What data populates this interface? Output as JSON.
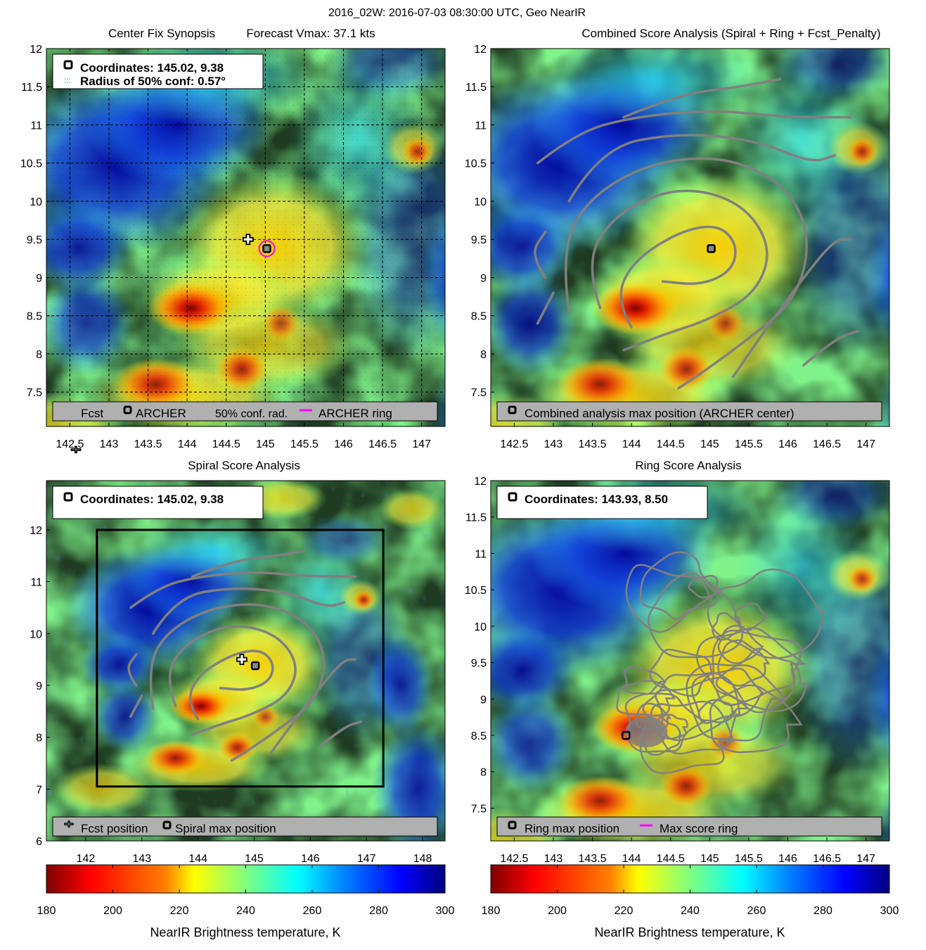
{
  "figure": {
    "suptitle": "2016_02W: 2016-07-03 08:30:00 UTC, Geo NearIR"
  },
  "colors": {
    "jet_stops": [
      "#7f0000",
      "#ff0000",
      "#ff8000",
      "#ffff00",
      "#80ff80",
      "#00ffff",
      "#0080ff",
      "#0000ff",
      "#00007f"
    ],
    "contour": "#808080",
    "archer_ring": "#ff00ff",
    "grid": "#000000",
    "legend_bg": "#b0b0b0"
  },
  "panels": {
    "tl": {
      "title_left": "Center Fix Synopsis",
      "title_right": "Forecast Vmax: 37.1 kts",
      "info_line1": "Coordinates: 145.02, 9.38",
      "info_line2": "Radius of 50% conf: 0.57°",
      "legend": {
        "fcst": "Fcst",
        "archer": "ARCHER",
        "conf": "50% conf. rad.",
        "ring": "ARCHER ring"
      }
    },
    "tr": {
      "title": "Combined Score Analysis (Spiral + Ring + Fcst_Penalty)",
      "legend": "Combined analysis max position (ARCHER center)"
    },
    "bl": {
      "title": "Spiral Score Analysis",
      "info_line1": "Coordinates: 145.02, 9.38",
      "legend": {
        "fcst": "Fcst position",
        "spiral": "Spiral max position"
      }
    },
    "br": {
      "title": "Ring Score Analysis",
      "info_line1": "Coordinates: 143.93, 8.50",
      "legend": {
        "ring_max": "Ring max position",
        "score_ring": "Max score ring"
      }
    }
  },
  "colorbars": {
    "label": "NearIR Brightness temperature, K",
    "ticks": [
      "180",
      "200",
      "220",
      "240",
      "260",
      "280",
      "300"
    ]
  },
  "chart_data": [
    {
      "id": "tl",
      "type": "heatmap",
      "xlim": [
        142.2,
        147.3
      ],
      "ylim": [
        7.05,
        12.0
      ],
      "xticks": [
        "142.5",
        "143",
        "143.5",
        "144",
        "144.5",
        "145",
        "145.5",
        "146",
        "146.5",
        "147"
      ],
      "yticks": [
        "7.5",
        "8",
        "8.5",
        "9",
        "9.5",
        "10",
        "10.5",
        "11",
        "11.5",
        "12"
      ],
      "grid": true,
      "points": [
        {
          "name": "Fcst",
          "lon": 144.78,
          "lat": 9.5
        },
        {
          "name": "ARCHER",
          "lon": 145.02,
          "lat": 9.38
        }
      ],
      "conf_radius_deg": 0.57
    },
    {
      "id": "tr",
      "type": "heatmap",
      "xlim": [
        142.2,
        147.3
      ],
      "ylim": [
        7.05,
        12.0
      ],
      "xticks": [
        "142.5",
        "143",
        "143.5",
        "144",
        "144.5",
        "145",
        "145.5",
        "146",
        "146.5",
        "147"
      ],
      "yticks": [
        "7.5",
        "8",
        "8.5",
        "9",
        "9.5",
        "10",
        "10.5",
        "11",
        "11.5",
        "12"
      ],
      "grid": false,
      "points": [
        {
          "name": "Combined max",
          "lon": 145.02,
          "lat": 9.38
        }
      ]
    },
    {
      "id": "bl",
      "type": "heatmap",
      "xlim": [
        141.3,
        148.4
      ],
      "ylim": [
        6.0,
        12.95
      ],
      "xticks": [
        "142",
        "143",
        "144",
        "145",
        "146",
        "147",
        "148"
      ],
      "yticks": [
        "6",
        "7",
        "8",
        "9",
        "10",
        "11",
        "12"
      ],
      "grid": false,
      "points": [
        {
          "name": "Fcst position",
          "lon": 144.78,
          "lat": 9.5
        },
        {
          "name": "Spiral max position",
          "lon": 145.02,
          "lat": 9.38
        }
      ],
      "analysis_box": {
        "lon": [
          142.2,
          147.3
        ],
        "lat": [
          7.05,
          12.0
        ]
      }
    },
    {
      "id": "br",
      "type": "heatmap",
      "xlim": [
        142.2,
        147.3
      ],
      "ylim": [
        7.05,
        12.0
      ],
      "xticks": [
        "142.5",
        "143",
        "143.5",
        "144",
        "144.5",
        "145",
        "145.5",
        "146",
        "146.5",
        "147"
      ],
      "yticks": [
        "7.5",
        "8",
        "8.5",
        "9",
        "9.5",
        "10",
        "10.5",
        "11",
        "11.5",
        "12"
      ],
      "grid": false,
      "points": [
        {
          "name": "Ring max position",
          "lon": 143.93,
          "lat": 8.5
        }
      ]
    }
  ]
}
